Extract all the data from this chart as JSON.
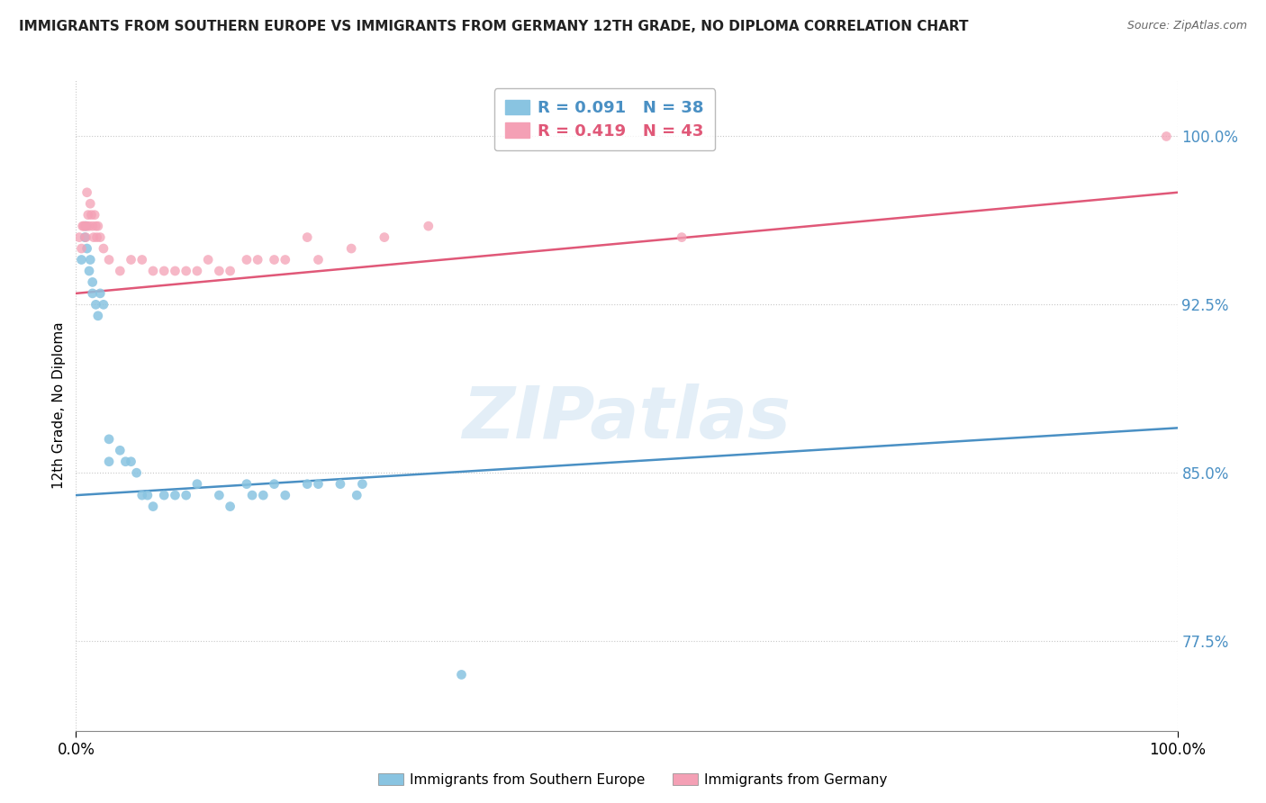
{
  "title": "IMMIGRANTS FROM SOUTHERN EUROPE VS IMMIGRANTS FROM GERMANY 12TH GRADE, NO DIPLOMA CORRELATION CHART",
  "source": "Source: ZipAtlas.com",
  "ylabel": "12th Grade, No Diploma",
  "legend_blue_label": "Immigrants from Southern Europe",
  "legend_pink_label": "Immigrants from Germany",
  "R_blue": 0.091,
  "N_blue": 38,
  "R_pink": 0.419,
  "N_pink": 43,
  "blue_color": "#89c4e1",
  "pink_color": "#f4a0b5",
  "trendline_blue_color": "#4a90c4",
  "trendline_pink_color": "#e05878",
  "xlim": [
    0.0,
    1.0
  ],
  "ylim": [
    0.735,
    1.025
  ],
  "yticks": [
    0.775,
    0.85,
    0.925,
    1.0
  ],
  "ytick_labels": [
    "77.5%",
    "85.0%",
    "92.5%",
    "100.0%"
  ],
  "xticks": [
    0.0,
    1.0
  ],
  "xtick_labels": [
    "0.0%",
    "100.0%"
  ],
  "blue_x": [
    0.005,
    0.008,
    0.009,
    0.01,
    0.012,
    0.013,
    0.015,
    0.015,
    0.018,
    0.02,
    0.022,
    0.025,
    0.03,
    0.03,
    0.04,
    0.045,
    0.05,
    0.055,
    0.06,
    0.065,
    0.07,
    0.08,
    0.09,
    0.1,
    0.11,
    0.13,
    0.14,
    0.155,
    0.16,
    0.17,
    0.18,
    0.19,
    0.21,
    0.22,
    0.24,
    0.255,
    0.26,
    0.35
  ],
  "blue_y": [
    0.945,
    0.955,
    0.96,
    0.95,
    0.94,
    0.945,
    0.935,
    0.93,
    0.925,
    0.92,
    0.93,
    0.925,
    0.855,
    0.865,
    0.86,
    0.855,
    0.855,
    0.85,
    0.84,
    0.84,
    0.835,
    0.84,
    0.84,
    0.84,
    0.845,
    0.84,
    0.835,
    0.845,
    0.84,
    0.84,
    0.845,
    0.84,
    0.845,
    0.845,
    0.845,
    0.84,
    0.845,
    0.76
  ],
  "pink_x": [
    0.003,
    0.005,
    0.006,
    0.007,
    0.008,
    0.009,
    0.01,
    0.01,
    0.011,
    0.012,
    0.013,
    0.014,
    0.015,
    0.016,
    0.017,
    0.018,
    0.019,
    0.02,
    0.022,
    0.025,
    0.03,
    0.04,
    0.05,
    0.06,
    0.07,
    0.08,
    0.09,
    0.1,
    0.11,
    0.12,
    0.13,
    0.14,
    0.155,
    0.165,
    0.18,
    0.19,
    0.21,
    0.22,
    0.25,
    0.28,
    0.32,
    0.55,
    0.99
  ],
  "pink_y": [
    0.955,
    0.95,
    0.96,
    0.96,
    0.96,
    0.955,
    0.96,
    0.975,
    0.965,
    0.96,
    0.97,
    0.965,
    0.96,
    0.955,
    0.965,
    0.96,
    0.955,
    0.96,
    0.955,
    0.95,
    0.945,
    0.94,
    0.945,
    0.945,
    0.94,
    0.94,
    0.94,
    0.94,
    0.94,
    0.945,
    0.94,
    0.94,
    0.945,
    0.945,
    0.945,
    0.945,
    0.955,
    0.945,
    0.95,
    0.955,
    0.96,
    0.955,
    1.0
  ],
  "watermark": "ZIPatlas",
  "background_color": "#ffffff",
  "grid_color": "#c8c8c8"
}
